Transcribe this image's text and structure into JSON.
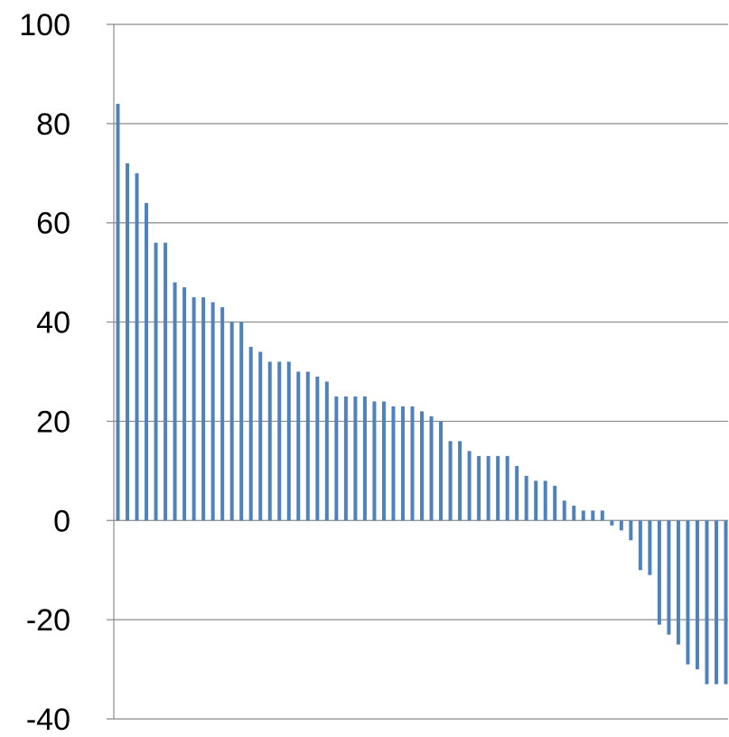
{
  "chart_data": {
    "type": "bar",
    "title": "",
    "xlabel": "",
    "ylabel": "",
    "ylim": [
      -40,
      100
    ],
    "yticks": [
      -40,
      -20,
      0,
      20,
      40,
      60,
      80,
      100
    ],
    "grid": true,
    "legend": "none",
    "bar_color": "#4f81bd",
    "grid_color": "#8c8c8c",
    "values": [
      84,
      72,
      70,
      64,
      56,
      56,
      48,
      47,
      45,
      45,
      44,
      43,
      40,
      40,
      35,
      34,
      32,
      32,
      32,
      30,
      30,
      29,
      28,
      25,
      25,
      25,
      25,
      24,
      24,
      23,
      23,
      23,
      22,
      21,
      20,
      16,
      16,
      14,
      13,
      13,
      13,
      13,
      11,
      9,
      8,
      8,
      7,
      4,
      3,
      2,
      2,
      2,
      -1,
      -2,
      -4,
      -10,
      -11,
      -21,
      -23,
      -25,
      -29,
      -30,
      -33,
      -33,
      -33
    ]
  }
}
